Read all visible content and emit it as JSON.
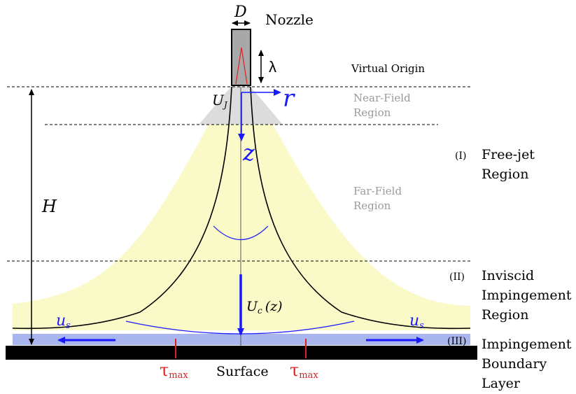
{
  "labels": {
    "nozzle_diameter": "D",
    "nozzle": "Nozzle",
    "potential_core_length": "λ",
    "virtual_origin": "Virtual Origin",
    "jet_velocity": "U",
    "jet_velocity_sub": "J",
    "radial_coord": "r",
    "axial_coord": "z",
    "near_field_line1": "Near-Field",
    "near_field_line2": "Region",
    "far_field_line1": "Far-Field",
    "far_field_line2": "Region",
    "region1_numeral": "(I)",
    "region1_line1": "Free-jet",
    "region1_line2": "Region",
    "region2_numeral": "(II)",
    "region2_line1": "Inviscid",
    "region2_line2": "Impingement",
    "region2_line3": "Region",
    "region3_numeral": "(III)",
    "region3_line1": "Impingement",
    "region3_line2": "Boundary",
    "region3_line3": "Layer",
    "standoff_height": "H",
    "centerline_velocity": "U",
    "centerline_velocity_sub": "c",
    "centerline_velocity_arg": "(z)",
    "surface_velocity": "u",
    "surface_velocity_sub": "s",
    "wall_shear": "τ",
    "wall_shear_sub": "max",
    "surface": "Surface"
  },
  "colors": {
    "jet_fill": "#fafac8",
    "near_field_fill": "#dcdcdc",
    "boundary_layer_fill": "#a9b6ee",
    "vector_blue": "#1a1aff",
    "shear_red": "#e02020",
    "region_gray": "#9a9a9a",
    "nozzle_gray": "#a8a8a8"
  }
}
